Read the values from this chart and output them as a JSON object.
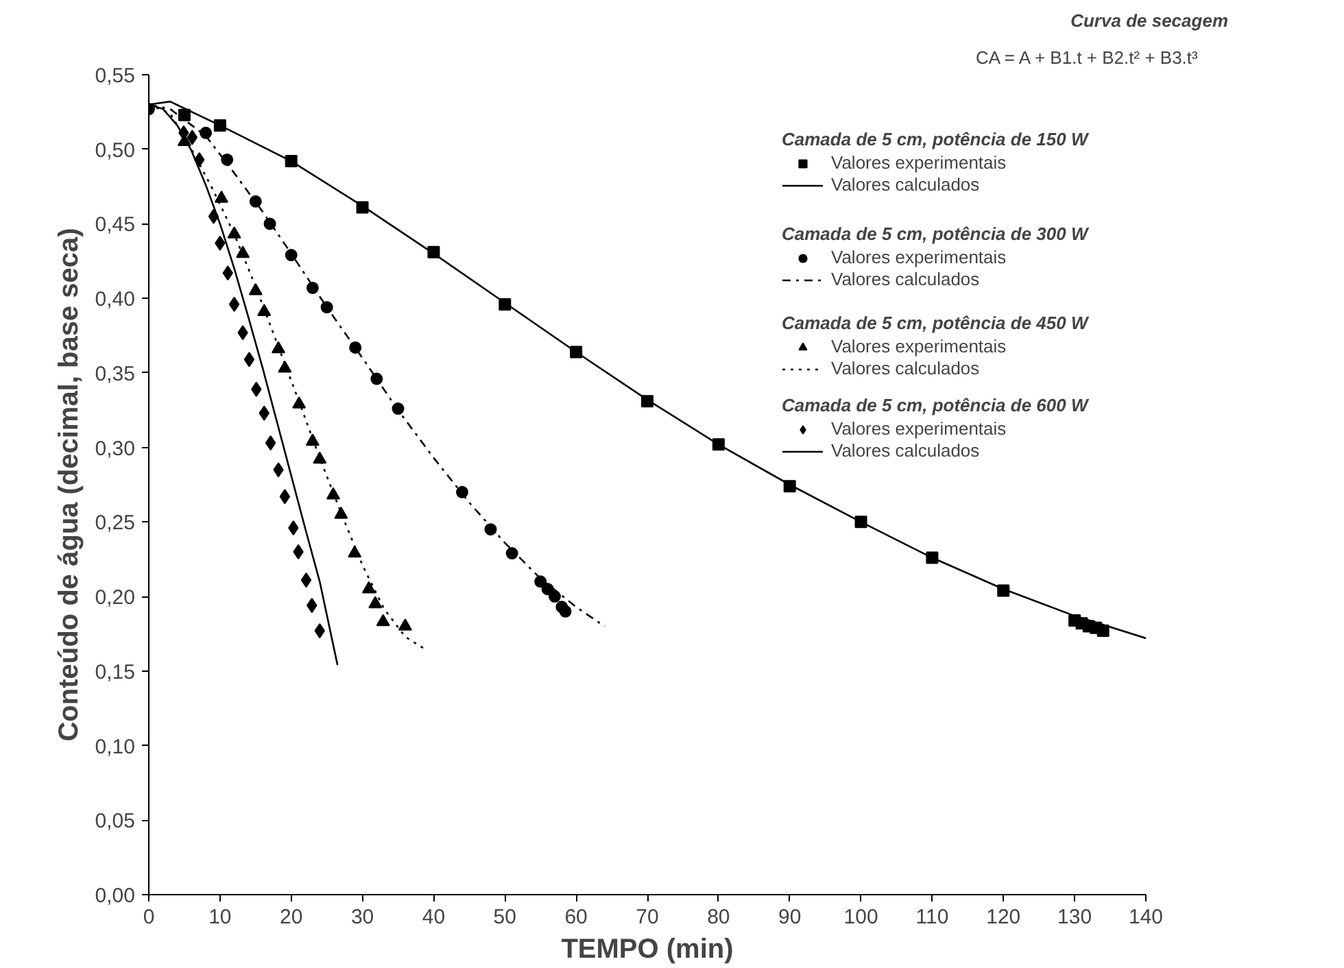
{
  "chart_data": {
    "type": "scatter",
    "title": "Curva de secagem",
    "subtitle": "CA = A + B1.t + B2.t² + B3.t³",
    "xlabel": "TEMPO (min)",
    "ylabel": "Conteúdo de água (decimal, base seca)",
    "annotations": [
      "Camada de 5 cm, potência de 150 W",
      "Camada de 5 cm, potência de 300 W",
      "Camada de 5 cm, potência de 450 W",
      "Camada de 5 cm, potência de 600 W"
    ],
    "xlim": [
      0,
      140
    ],
    "ylim": [
      0,
      0.55
    ],
    "xticks": [
      0,
      10,
      20,
      30,
      40,
      50,
      60,
      70,
      80,
      90,
      100,
      110,
      120,
      130,
      140
    ],
    "yticks": [
      {
        "value": 0,
        "label": "0,00"
      },
      {
        "value": 0.05,
        "label": "0,05"
      },
      {
        "value": 0.1,
        "label": "0,10"
      },
      {
        "value": 0.15,
        "label": "0,15"
      },
      {
        "value": 0.2,
        "label": "0,20"
      },
      {
        "value": 0.25,
        "label": "0,25"
      },
      {
        "value": 0.3,
        "label": "0,30"
      },
      {
        "value": 0.35,
        "label": "0,35"
      },
      {
        "value": 0.4,
        "label": "0,40"
      },
      {
        "value": 0.45,
        "label": "0,45"
      },
      {
        "value": 0.5,
        "label": "0,50"
      },
      {
        "value": 0.55,
        "label": "0,55"
      }
    ],
    "grid": false,
    "legend": "top right",
    "series": [
      {
        "name": "Valores experimentais",
        "marker": "square",
        "color": "#000000",
        "x": [
          5,
          10,
          20,
          30,
          40,
          50,
          60,
          70,
          80,
          90,
          100,
          110,
          120,
          130,
          131,
          132,
          133,
          134
        ],
        "values": [
          0.523,
          0.516,
          0.492,
          0.461,
          0.431,
          0.396,
          0.364,
          0.331,
          0.302,
          0.274,
          0.25,
          0.226,
          0.204,
          0.184,
          0.182,
          0.18,
          0.179,
          0.177
        ]
      },
      {
        "name": "Valores calculados",
        "type": "line",
        "line_style": "solid",
        "color": "#000000",
        "x": [
          0,
          3,
          10,
          20,
          30,
          40,
          50,
          60,
          70,
          80,
          90,
          100,
          110,
          120,
          130,
          140
        ],
        "values": [
          0.53,
          0.532,
          0.516,
          0.492,
          0.462,
          0.43,
          0.397,
          0.364,
          0.332,
          0.302,
          0.275,
          0.25,
          0.226,
          0.205,
          0.187,
          0.172
        ]
      },
      {
        "name": "Valores experimentais",
        "marker": "circle",
        "color": "#000000",
        "x": [
          0,
          8,
          11,
          15,
          17,
          20,
          23,
          25,
          29,
          32,
          35,
          44,
          48,
          51,
          55,
          56,
          57,
          58,
          58.5
        ],
        "values": [
          0.527,
          0.511,
          0.493,
          0.465,
          0.45,
          0.429,
          0.407,
          0.394,
          0.367,
          0.346,
          0.326,
          0.27,
          0.245,
          0.229,
          0.21,
          0.205,
          0.2,
          0.193,
          0.19
        ]
      },
      {
        "name": "Valores calculados",
        "type": "line",
        "line_style": "dashdot",
        "color": "#000000",
        "x": [
          0,
          3,
          8,
          12,
          16,
          20,
          25,
          30,
          35,
          40,
          45,
          50,
          55,
          60,
          64
        ],
        "values": [
          0.53,
          0.527,
          0.509,
          0.484,
          0.458,
          0.43,
          0.394,
          0.36,
          0.325,
          0.293,
          0.263,
          0.236,
          0.212,
          0.193,
          0.18
        ]
      },
      {
        "name": "Valores experimentais",
        "marker": "triangle",
        "color": "#000000",
        "x": [
          5,
          10.2,
          12,
          13.2,
          15,
          16.2,
          18.2,
          19.1,
          21.1,
          23,
          24,
          25.9,
          27,
          28.9,
          30.9,
          31.8,
          32.9,
          36
        ],
        "values": [
          0.505,
          0.467,
          0.443,
          0.43,
          0.405,
          0.391,
          0.366,
          0.353,
          0.329,
          0.304,
          0.292,
          0.268,
          0.255,
          0.229,
          0.205,
          0.195,
          0.183,
          0.18
        ]
      },
      {
        "name": "Valores calculados",
        "type": "line",
        "line_style": "dotted",
        "color": "#000000",
        "x": [
          0,
          3,
          6,
          9,
          12,
          15,
          18,
          21,
          24,
          27,
          30,
          33,
          36,
          39
        ],
        "values": [
          0.53,
          0.524,
          0.5,
          0.473,
          0.443,
          0.408,
          0.37,
          0.332,
          0.293,
          0.256,
          0.221,
          0.192,
          0.173,
          0.164
        ]
      },
      {
        "name": "Valores experimentais",
        "marker": "diamond",
        "color": "#000000",
        "x": [
          4.9,
          6.1,
          7.1,
          9.1,
          10,
          11.1,
          12,
          13.2,
          14.1,
          15.1,
          16.2,
          17.1,
          18.2,
          19.1,
          20.3,
          21,
          22.1,
          22.9,
          24
        ],
        "values": [
          0.511,
          0.508,
          0.493,
          0.455,
          0.437,
          0.417,
          0.396,
          0.377,
          0.359,
          0.339,
          0.323,
          0.303,
          0.285,
          0.267,
          0.246,
          0.23,
          0.211,
          0.194,
          0.177
        ]
      },
      {
        "name": "Valores calculados",
        "type": "line",
        "line_style": "solid",
        "color": "#000000",
        "x": [
          0,
          2,
          4,
          6,
          8,
          10,
          12,
          14,
          16,
          18,
          20,
          22,
          24,
          26.5
        ],
        "values": [
          0.53,
          0.527,
          0.516,
          0.499,
          0.476,
          0.45,
          0.42,
          0.387,
          0.353,
          0.317,
          0.281,
          0.245,
          0.21,
          0.154
        ]
      }
    ]
  }
}
